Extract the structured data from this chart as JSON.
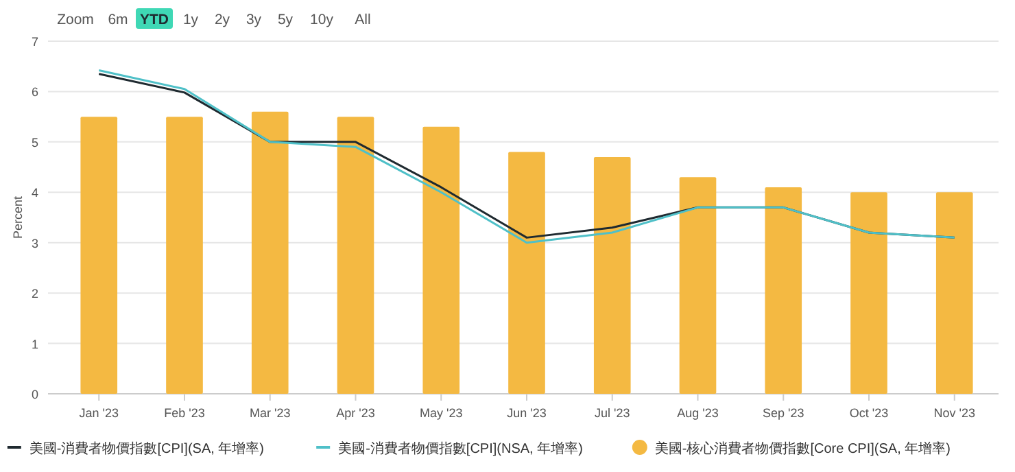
{
  "chart_data": {
    "type": "bar",
    "ylabel": "Percent",
    "categories": [
      "Jan '23",
      "Feb '23",
      "Mar '23",
      "Apr '23",
      "May '23",
      "Jun '23",
      "Jul '23",
      "Aug '23",
      "Sep '23",
      "Oct '23",
      "Nov '23"
    ],
    "series": [
      {
        "name": "美國-消費者物價指數[CPI](SA, 年增率)",
        "type": "line",
        "color": "#1f2a30",
        "values": [
          6.35,
          5.98,
          5.0,
          5.0,
          4.1,
          3.1,
          3.3,
          3.7,
          3.7,
          3.2,
          3.1
        ]
      },
      {
        "name": "美國-消費者物價指數[CPI](NSA, 年增率)",
        "type": "line",
        "color": "#4fc0c8",
        "values": [
          6.42,
          6.05,
          5.0,
          4.9,
          4.0,
          3.0,
          3.2,
          3.7,
          3.7,
          3.2,
          3.1
        ]
      },
      {
        "name": "美國-核心消費者物價指數[Core CPI](SA, 年增率)",
        "color": "#f4b942",
        "values": [
          5.5,
          5.5,
          5.6,
          5.5,
          5.3,
          4.8,
          4.7,
          4.3,
          4.1,
          4.0,
          4.0
        ]
      }
    ],
    "ylim": [
      0,
      7
    ],
    "yticks": [
      0,
      1,
      2,
      3,
      4,
      5,
      6,
      7
    ],
    "grid": "y",
    "legend": "bottom",
    "marker": "none",
    "line_style": "solid",
    "annotations": [
      "Zoom",
      "6m",
      "YTD",
      "1y",
      "2y",
      "3y",
      "5y",
      "10y",
      "All"
    ]
  }
}
